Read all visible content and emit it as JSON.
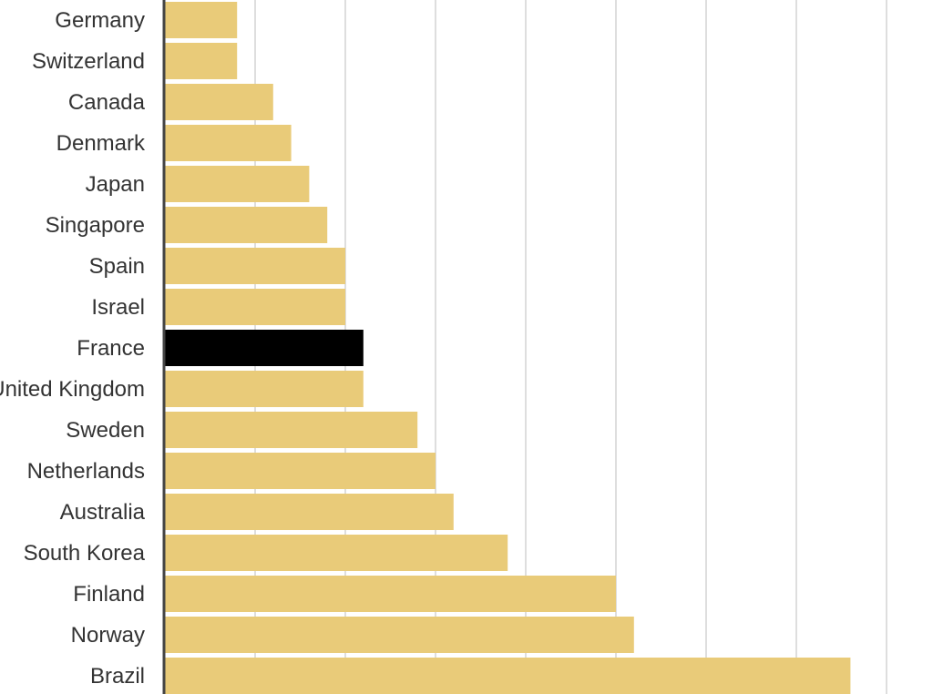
{
  "chart_data": {
    "type": "bar",
    "orientation": "horizontal",
    "categories": [
      "Germany",
      "Switzerland",
      "Canada",
      "Denmark",
      "Japan",
      "Singapore",
      "Spain",
      "Israel",
      "France",
      "United Kingdom",
      "Sweden",
      "Netherlands",
      "Australia",
      "South Korea",
      "Finland",
      "Norway",
      "Brazil"
    ],
    "values": [
      4,
      4,
      6,
      7,
      8,
      9,
      10,
      10,
      11,
      11,
      14,
      15,
      16,
      19,
      25,
      26,
      38
    ],
    "highlight_category": "France",
    "xlim": [
      0,
      40
    ],
    "grid": true,
    "colors": {
      "bar": "#E9CB79",
      "highlight": "#000000",
      "grid": "#d3d3d3",
      "axis": "#444444",
      "label": "#333333"
    }
  }
}
